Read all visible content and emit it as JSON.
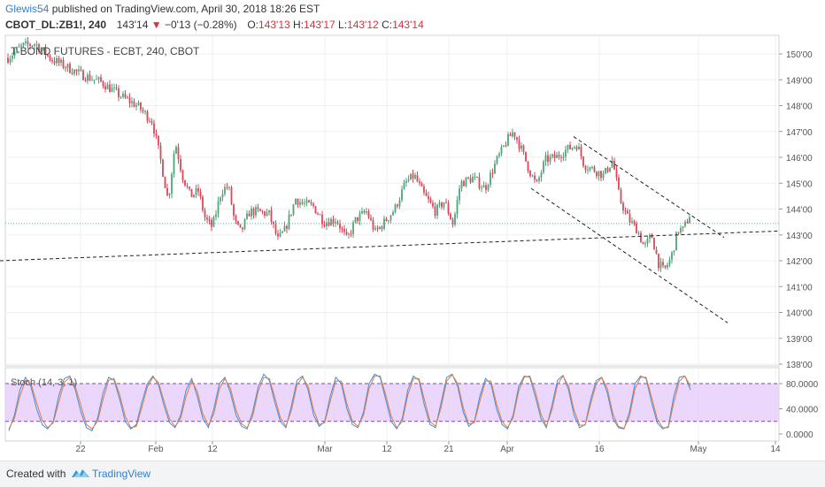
{
  "header": {
    "user": "Glewis54",
    "published": "published on TradingView.com, April 30, 2018 18:26 EST",
    "symbol": "CBOT_DL:ZB1!, 240",
    "last": "143'14",
    "change": "−0'13 (−0.28%)",
    "o_label": "O:",
    "o": "143'13",
    "h_label": "H:",
    "h": "143'17",
    "l_label": "L:",
    "l": "143'12",
    "c_label": "C:",
    "c": "143'14"
  },
  "footer": {
    "created": "Created with",
    "brand": "TradingView"
  },
  "colors": {
    "up": "#52a37a",
    "down": "#d9495a",
    "last_line": "#53b6a8",
    "stoch_k": "#3f8fe0",
    "stoch_d": "#e07a3c",
    "stoch_band": "#e6c9fb"
  },
  "chart_data": [
    {
      "type": "candlestick",
      "title": "T-BOND FUTURES - ECBT, 240, CBOT",
      "x_labels": [
        "22",
        "Feb",
        "12",
        "Mar",
        "12",
        "21",
        "Apr",
        "16",
        "May",
        "14"
      ],
      "y_ticks": [
        "150'00",
        "149'00",
        "148'00",
        "147'00",
        "146'00",
        "145'00",
        "144'00",
        "143'00",
        "142'00",
        "141'00",
        "140'00",
        "139'00",
        "138'00"
      ],
      "ylim": [
        138,
        150.4
      ],
      "last_price": 143.44,
      "grid": true,
      "x_range": "mid January 2018 to mid May 2018",
      "x_note": "Bars are 240-minute periods; the chart spans mid-January 2018 to mid-May 2018",
      "price_path": [
        [
          0,
          149.6
        ],
        [
          25,
          150.3
        ],
        [
          40,
          150.4
        ],
        [
          58,
          149.8
        ],
        [
          75,
          149.5
        ],
        [
          92,
          149.2
        ],
        [
          115,
          148.9
        ],
        [
          135,
          148.4
        ],
        [
          155,
          148.0
        ],
        [
          172,
          147.4
        ],
        [
          182,
          145.8
        ],
        [
          190,
          144.3
        ],
        [
          198,
          146.6
        ],
        [
          206,
          145.3
        ],
        [
          215,
          144.5
        ],
        [
          224,
          144.7
        ],
        [
          232,
          143.6
        ],
        [
          240,
          143.3
        ],
        [
          250,
          144.7
        ],
        [
          258,
          144.9
        ],
        [
          265,
          143.5
        ],
        [
          272,
          143.1
        ],
        [
          282,
          143.9
        ],
        [
          292,
          143.9
        ],
        [
          304,
          143.8
        ],
        [
          314,
          142.8
        ],
        [
          322,
          143.2
        ],
        [
          334,
          144.4
        ],
        [
          342,
          144.2
        ],
        [
          354,
          144.1
        ],
        [
          366,
          143.5
        ],
        [
          380,
          143.6
        ],
        [
          392,
          142.8
        ],
        [
          402,
          143.6
        ],
        [
          414,
          143.9
        ],
        [
          424,
          143.1
        ],
        [
          432,
          143.4
        ],
        [
          446,
          144.0
        ],
        [
          458,
          145.0
        ],
        [
          468,
          145.3
        ],
        [
          478,
          144.6
        ],
        [
          492,
          143.9
        ],
        [
          502,
          144.3
        ],
        [
          512,
          143.4
        ],
        [
          520,
          145.0
        ],
        [
          534,
          145.2
        ],
        [
          548,
          144.8
        ],
        [
          560,
          145.8
        ],
        [
          572,
          146.6
        ],
        [
          580,
          147.0
        ],
        [
          588,
          146.4
        ],
        [
          598,
          145.5
        ],
        [
          606,
          144.9
        ],
        [
          616,
          145.9
        ],
        [
          628,
          146.0
        ],
        [
          640,
          146.3
        ],
        [
          652,
          146.5
        ],
        [
          660,
          145.7
        ],
        [
          672,
          145.5
        ],
        [
          682,
          145.3
        ],
        [
          692,
          145.9
        ],
        [
          700,
          144.4
        ],
        [
          710,
          143.6
        ],
        [
          720,
          143.2
        ],
        [
          728,
          142.5
        ],
        [
          736,
          143.0
        ],
        [
          744,
          141.9
        ],
        [
          750,
          141.6
        ],
        [
          758,
          142.1
        ],
        [
          766,
          143.2
        ],
        [
          772,
          143.2
        ],
        [
          780,
          143.85
        ]
      ],
      "trendlines": [
        {
          "from": [
            0,
            142.0
          ],
          "to": [
            880,
            143.15
          ]
        },
        {
          "from": [
            600,
            144.8
          ],
          "to": [
            822,
            139.6
          ]
        },
        {
          "from": [
            648,
            146.8
          ],
          "to": [
            818,
            142.9
          ]
        }
      ]
    },
    {
      "type": "line",
      "title": "Stoch (14, 3, 1)",
      "y_ticks": [
        "80.0000",
        "40.0000",
        "0.0000"
      ],
      "ylim": [
        -5,
        100
      ],
      "bands": [
        20,
        80
      ],
      "series": [
        {
          "values": [
            5,
            30,
            70,
            90,
            75,
            40,
            15,
            8,
            20,
            60,
            88,
            92,
            70,
            35,
            10,
            5,
            25,
            65,
            90,
            85,
            55,
            20,
            8,
            15,
            50,
            80,
            92,
            78,
            45,
            18,
            10,
            30,
            70,
            88,
            60,
            25,
            10,
            40,
            80,
            90,
            65,
            30,
            12,
            8,
            35,
            75,
            95,
            85,
            50,
            20,
            10,
            45,
            85,
            92,
            70,
            30,
            12,
            20,
            60,
            90,
            80,
            40,
            15,
            10,
            35,
            80,
            95,
            90,
            55,
            20,
            8,
            25,
            70,
            92,
            85,
            45,
            15,
            10,
            50,
            90,
            95,
            75,
            35,
            12,
            20,
            60,
            88,
            80,
            40,
            15,
            8,
            30,
            75,
            92,
            90,
            60,
            25,
            10,
            45,
            85,
            93,
            70,
            30,
            10,
            15,
            55,
            85,
            90,
            65,
            25,
            10,
            8,
            35,
            80,
            92,
            88,
            50,
            18,
            8,
            12,
            60,
            90,
            92,
            70
          ]
        },
        {
          "values": [
            8,
            25,
            60,
            85,
            80,
            50,
            22,
            10,
            18,
            50,
            82,
            90,
            75,
            45,
            15,
            8,
            20,
            55,
            85,
            88,
            62,
            28,
            10,
            12,
            42,
            75,
            90,
            82,
            52,
            24,
            12,
            25,
            60,
            84,
            68,
            32,
            14,
            32,
            72,
            88,
            72,
            38,
            16,
            10,
            28,
            68,
            90,
            88,
            58,
            26,
            12,
            38,
            78,
            90,
            76,
            38,
            15,
            18,
            52,
            84,
            84,
            48,
            20,
            12,
            30,
            72,
            92,
            92,
            62,
            28,
            10,
            20,
            62,
            88,
            88,
            54,
            20,
            12,
            42,
            84,
            94,
            80,
            42,
            16,
            18,
            52,
            84,
            84,
            48,
            20,
            10,
            26,
            68,
            90,
            92,
            68,
            32,
            12,
            38,
            78,
            92,
            76,
            38,
            14,
            14,
            48,
            80,
            90,
            72,
            32,
            12,
            9,
            28,
            72,
            90,
            90,
            58,
            24,
            10,
            10,
            50,
            84,
            92,
            76
          ]
        }
      ]
    }
  ]
}
